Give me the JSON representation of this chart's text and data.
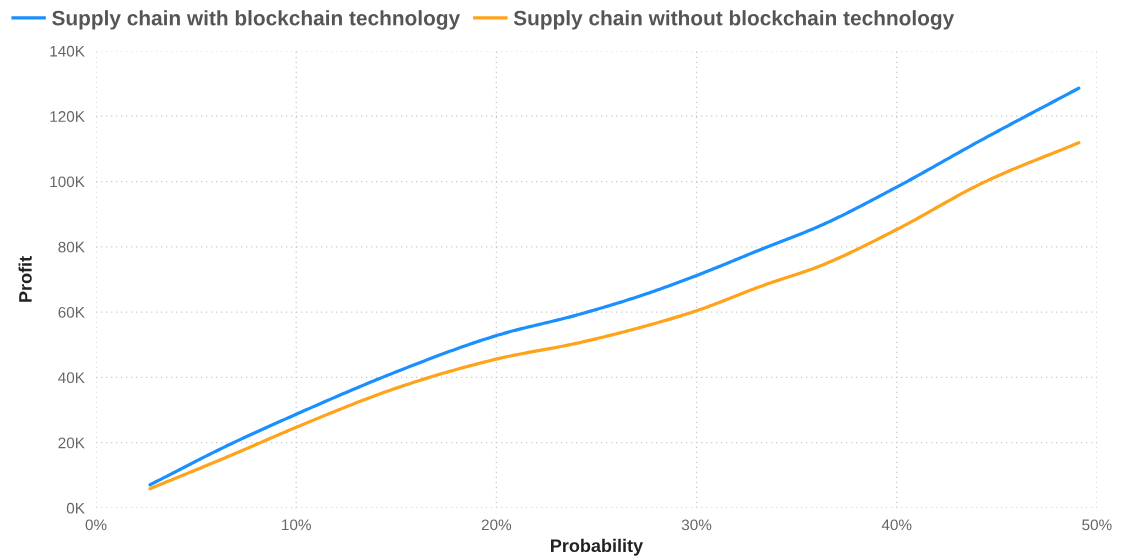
{
  "chart_data": {
    "type": "line",
    "xlabel": "Probability",
    "ylabel": "Profit",
    "x": [
      2.7,
      6.7,
      10,
      15,
      20,
      24.2,
      27.5,
      30,
      33.3,
      36.2,
      40,
      44.2,
      49.1
    ],
    "series": [
      {
        "name": "Supply chain with blockchain technology",
        "color": "#1a8fff",
        "values": [
          7100,
          19500,
          28700,
          41700,
          52800,
          59400,
          65600,
          71200,
          79400,
          86500,
          98300,
          112600,
          128600
        ]
      },
      {
        "name": "Supply chain without blockchain technology",
        "color": "#ffa31a",
        "values": [
          5900,
          16000,
          24700,
          36700,
          45600,
          50700,
          55800,
          60400,
          68100,
          74200,
          85300,
          99300,
          111900
        ]
      }
    ],
    "xlim": [
      0,
      50
    ],
    "xticks": [
      {
        "value": 0,
        "label": "0%"
      },
      {
        "value": 10,
        "label": "10%"
      },
      {
        "value": 20,
        "label": "20%"
      },
      {
        "value": 30,
        "label": "30%"
      },
      {
        "value": 40,
        "label": "40%"
      },
      {
        "value": 50,
        "label": "50%"
      }
    ],
    "ylim": [
      0,
      140000
    ],
    "yticks": [
      {
        "value": 0,
        "label": "0K"
      },
      {
        "value": 20000,
        "label": "20K"
      },
      {
        "value": 40000,
        "label": "40K"
      },
      {
        "value": 60000,
        "label": "60K"
      },
      {
        "value": 80000,
        "label": "80K"
      },
      {
        "value": 100000,
        "label": "100K"
      },
      {
        "value": 120000,
        "label": "120K"
      },
      {
        "value": 140000,
        "label": "140K"
      }
    ],
    "grid": true,
    "legend": "top left"
  }
}
